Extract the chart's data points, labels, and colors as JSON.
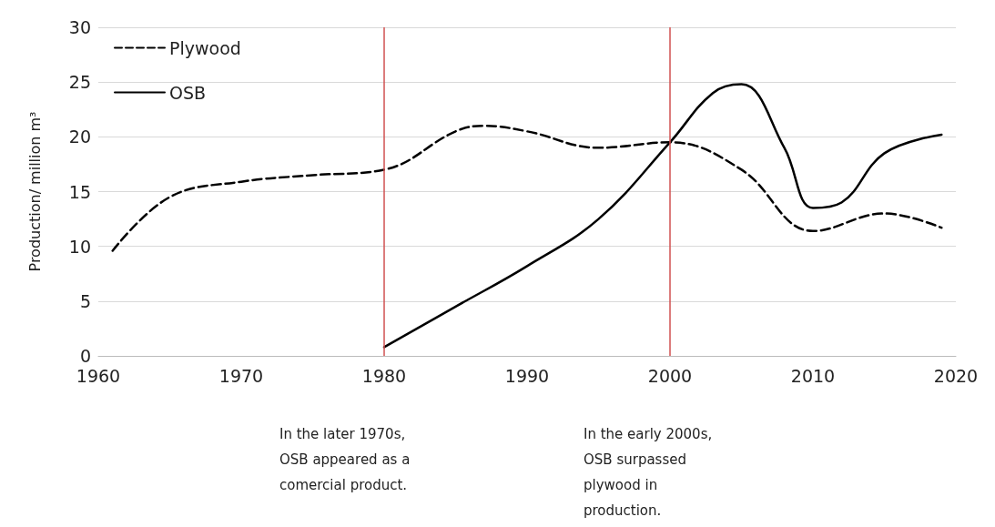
{
  "chart_data": {
    "type": "line",
    "ylabel": "Production/ million m³",
    "xlim": [
      1960,
      2020
    ],
    "xticks": [
      1960,
      1970,
      1980,
      1990,
      2000,
      2010,
      2020
    ],
    "ylim": [
      0,
      30
    ],
    "yticks": [
      0,
      5,
      10,
      15,
      20,
      25,
      30
    ],
    "grid": "y",
    "legend": "top left",
    "marker": "none",
    "series": [
      {
        "name": "Plywood",
        "color": "#000000",
        "line_style": "dashed",
        "x": [
          1961,
          1965,
          1970,
          1975,
          1980,
          1985,
          1987,
          1990,
          1995,
          2000,
          2005,
          2010,
          2015,
          2019
        ],
        "values": [
          9.6,
          14.5,
          15.9,
          16.5,
          17,
          20.5,
          21,
          20.5,
          19,
          19.5,
          17,
          11.4,
          13,
          11.7
        ]
      },
      {
        "name": "OSB",
        "color": "#000000",
        "line_style": "solid",
        "x": [
          1980,
          1985,
          1990,
          1995,
          2000,
          2003,
          2005,
          2008,
          2010,
          2012,
          2015,
          2019
        ],
        "values": [
          0.8,
          4.5,
          8.2,
          12.5,
          19.5,
          24,
          24.8,
          19,
          13.5,
          14,
          18.5,
          20.2
        ]
      }
    ],
    "ref_lines": [
      {
        "axis": "x",
        "value": 1980,
        "color": "#d05050",
        "line_style": "solid"
      },
      {
        "axis": "x",
        "value": 2000,
        "color": "#d05050",
        "line_style": "solid"
      }
    ],
    "annotations": [
      "In the later 1970s, OSB appeared as a comercial product.",
      "In the early 2000s, OSB surpassed plywood in production."
    ]
  }
}
